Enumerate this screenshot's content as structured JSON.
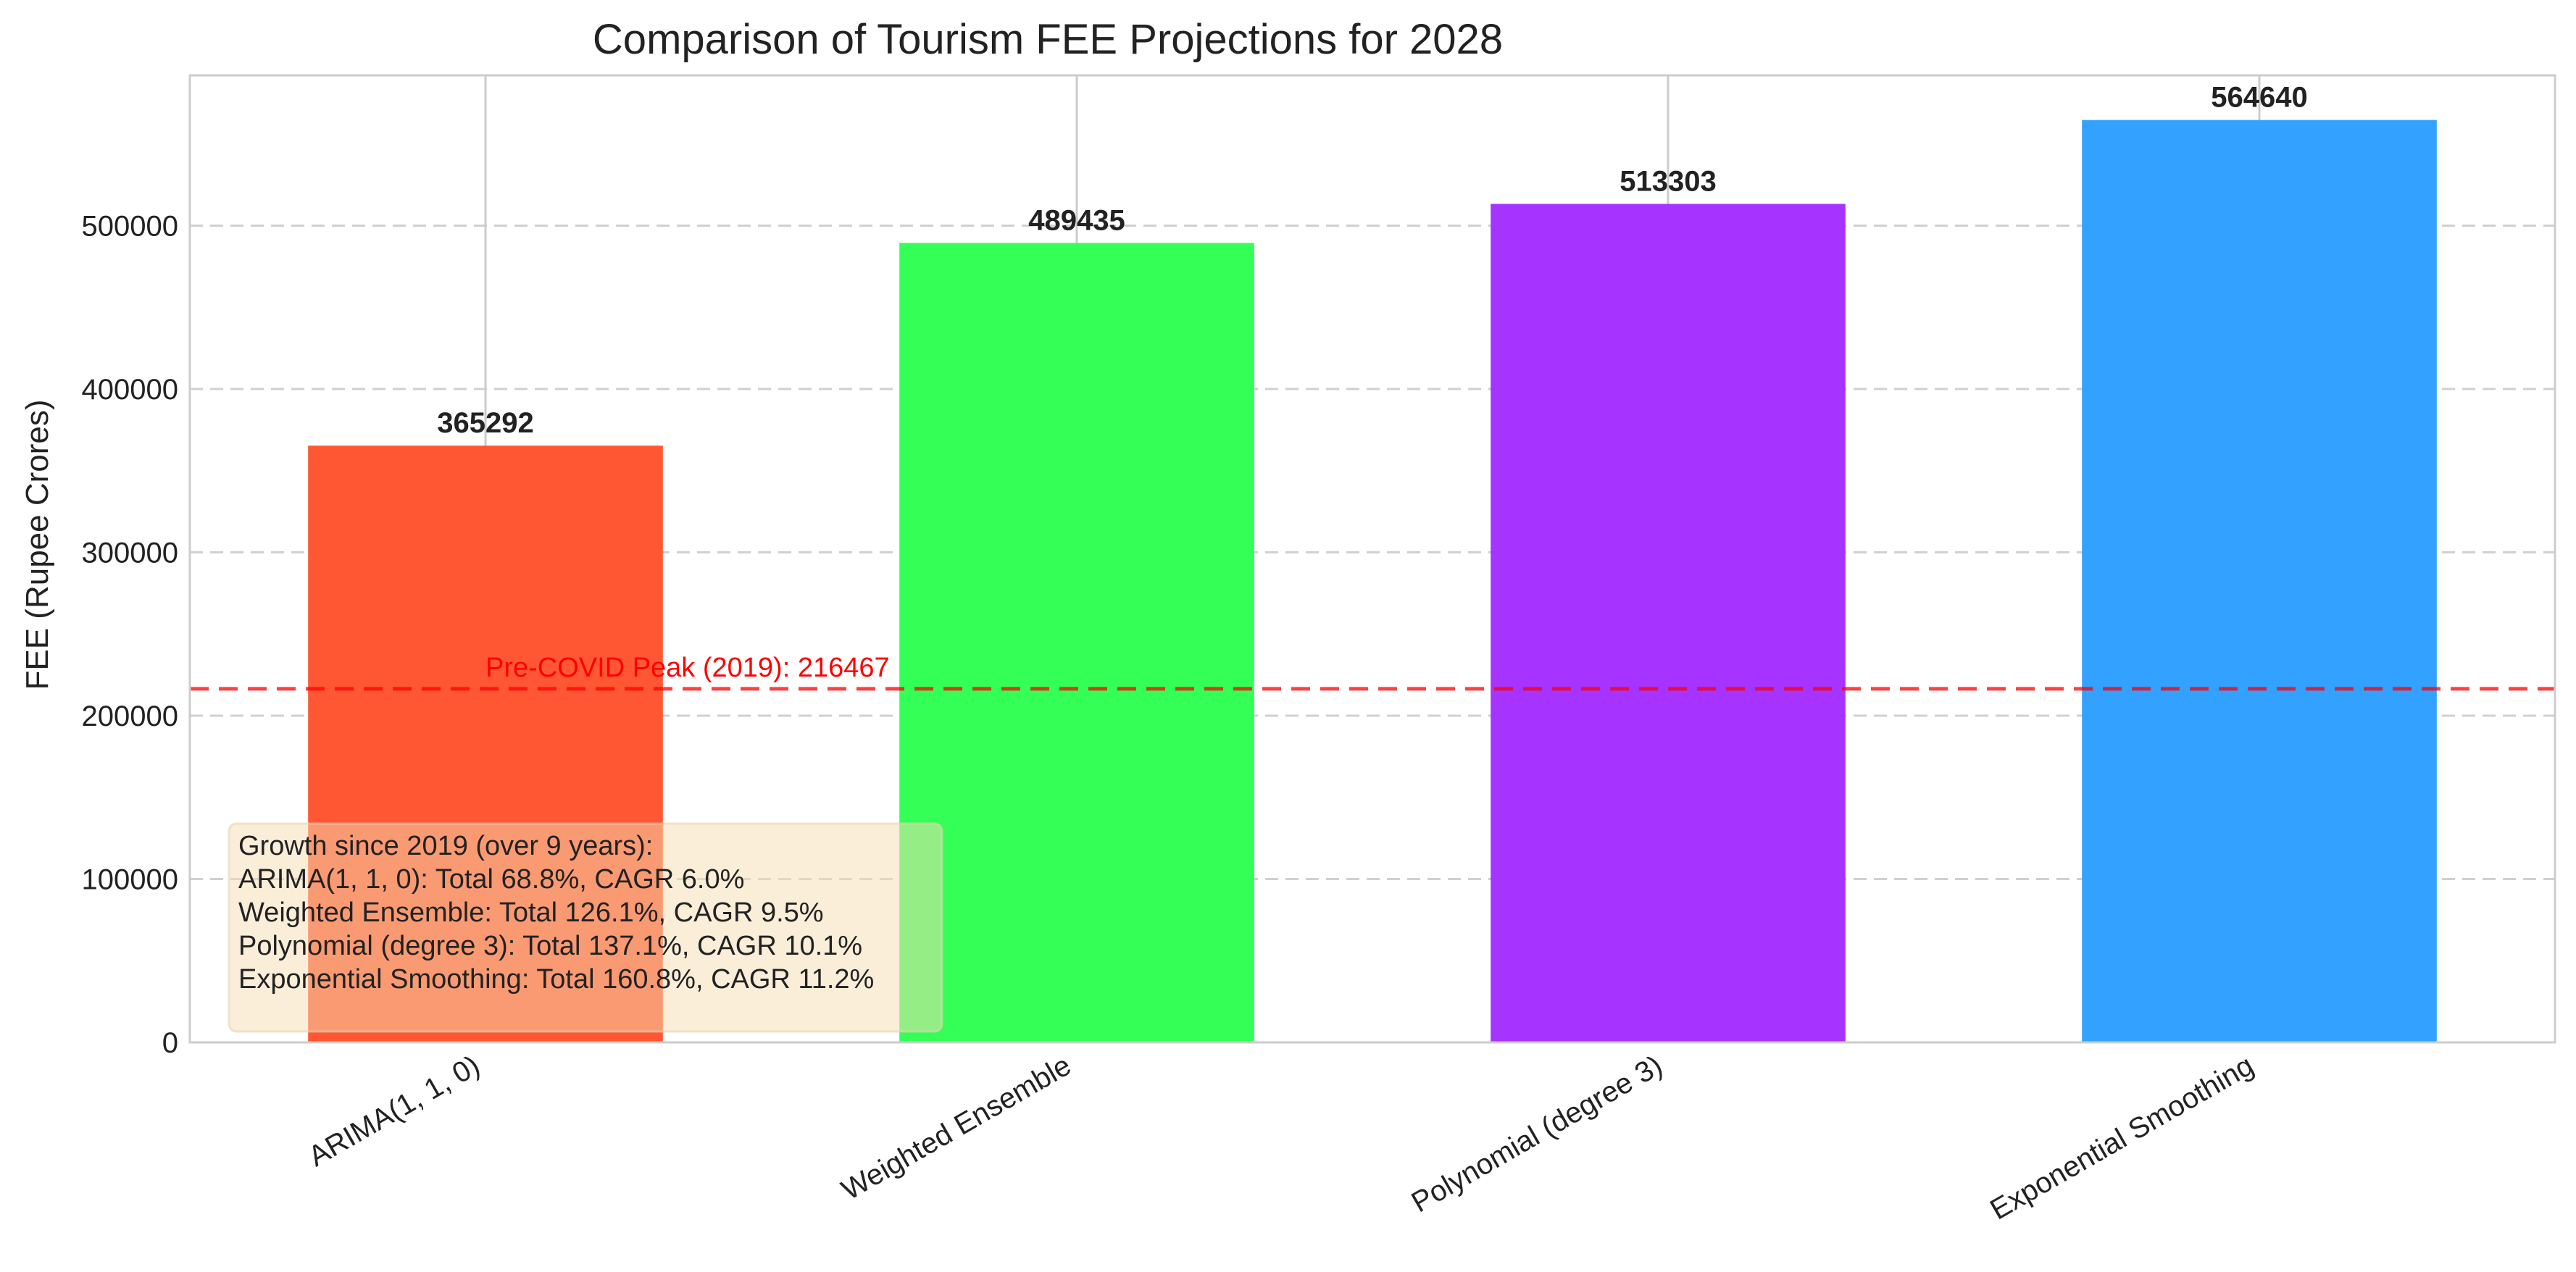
{
  "chart_data": {
    "type": "bar",
    "title": "Comparison of Tourism FEE Projections for 2028",
    "xlabel": "",
    "ylabel": "FEE (Rupee Crores)",
    "categories": [
      "ARIMA(1, 1, 0)",
      "Weighted Ensemble",
      "Polynomial (degree 3)",
      "Exponential Smoothing"
    ],
    "values": [
      365292,
      489435,
      513303,
      564640
    ],
    "value_labels": [
      "365292",
      "489435",
      "513303",
      "564640"
    ],
    "colors": [
      "#ff5733",
      "#33ff57",
      "#a633ff",
      "#33a1ff"
    ],
    "ylim": [
      0,
      592000
    ],
    "yticks": [
      0,
      100000,
      200000,
      300000,
      400000,
      500000
    ],
    "ytick_labels": [
      "0",
      "100000",
      "200000",
      "300000",
      "400000",
      "500000"
    ],
    "grid": true,
    "reference_line": {
      "value": 216467,
      "label": "Pre-COVID Peak (2019): 216467",
      "color": "#ff0000"
    },
    "annotation": {
      "lines": [
        "Growth since 2019 (over 9 years):",
        "ARIMA(1, 1, 0): Total 68.8%, CAGR 6.0%",
        "Weighted Ensemble: Total 126.1%, CAGR 9.5%",
        "Polynomial (degree 3): Total 137.1%, CAGR 10.1%",
        "Exponential Smoothing: Total 160.8%, CAGR 11.2%"
      ]
    }
  }
}
